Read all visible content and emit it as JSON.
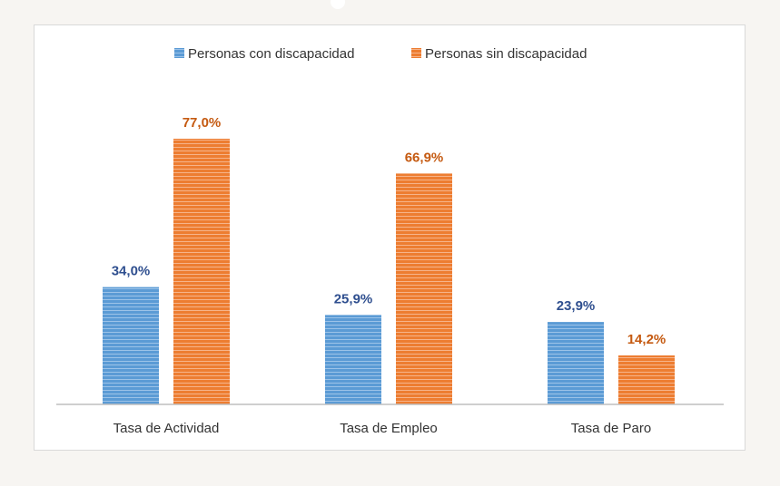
{
  "chart_data": {
    "type": "bar",
    "title": "",
    "xlabel": "",
    "ylabel": "",
    "ylim": [
      0,
      100
    ],
    "grid": false,
    "legend_position": "top",
    "categories": [
      "Tasa de Actividad",
      "Tasa de Empleo",
      "Tasa de Paro"
    ],
    "series": [
      {
        "name": "Personas con discapacidad",
        "values": [
          34.0,
          25.9,
          23.9
        ],
        "labels": [
          "34,0%",
          "25,9%",
          "23,9%"
        ],
        "color": "#5b9bd5",
        "label_color": "#2f4f8f"
      },
      {
        "name": "Personas sin discapacidad",
        "values": [
          77.0,
          66.9,
          14.2
        ],
        "labels": [
          "77,0%",
          "66,9%",
          "14,2%"
        ],
        "color": "#ed7d31",
        "label_color": "#c55a11"
      }
    ]
  }
}
